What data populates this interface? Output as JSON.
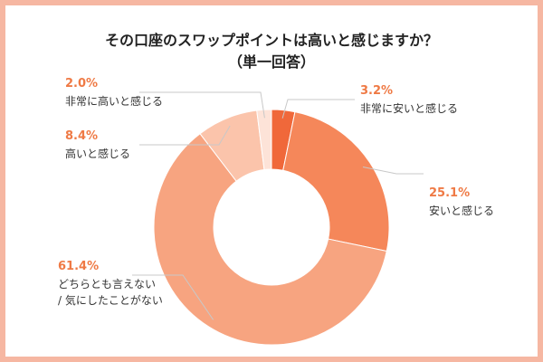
{
  "chart_data": {
    "type": "pie",
    "variant": "donut",
    "title": "その口座のスワップポイントは高いと感じますか？",
    "subtitle": "（単一回答）",
    "unit": "%",
    "slices": [
      {
        "label": "非常に安いと感じる",
        "value": 3.2,
        "display": "3.2%",
        "color": "#f0683a"
      },
      {
        "label": "安いと感じる",
        "value": 25.1,
        "display": "25.1%",
        "color": "#f5875a"
      },
      {
        "label": "どちらとも言えない／気にしたことがない",
        "label_lines": [
          "どちらとも言えない",
          "/ 気にしたことがない"
        ],
        "value": 61.4,
        "display": "61.4%",
        "color": "#f7a480"
      },
      {
        "label": "高いと感じる",
        "value": 8.4,
        "display": "8.4%",
        "color": "#fbc4ab"
      },
      {
        "label": "非常に高いと感じる",
        "value": 2.0,
        "display": "2.0%",
        "color": "#fde3d8"
      }
    ]
  }
}
